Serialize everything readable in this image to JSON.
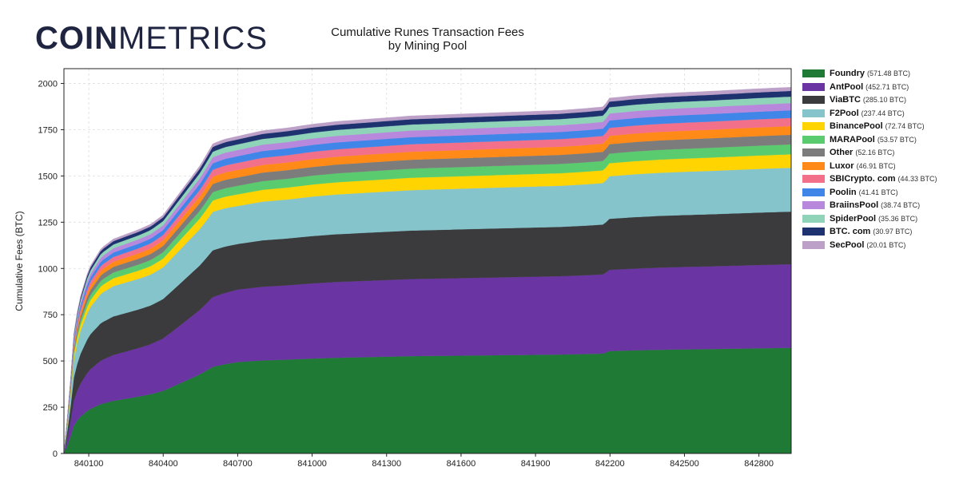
{
  "brand": {
    "logo_bold": "COIN",
    "logo_light": "METRICS"
  },
  "chart_data": {
    "type": "area",
    "stacked": true,
    "title": "Cumulative Runes Transaction Fees",
    "subtitle": "by Mining Pool",
    "xlabel": "",
    "ylabel": "Cumulative Fees (BTC)",
    "xlim": [
      840000,
      842930
    ],
    "ylim": [
      0,
      2080
    ],
    "x_ticks": [
      840100,
      840400,
      840700,
      841000,
      841300,
      841600,
      841900,
      842200,
      842500,
      842800
    ],
    "y_ticks": [
      0,
      250,
      500,
      750,
      1000,
      1250,
      1500,
      1750,
      2000
    ],
    "grid": true,
    "legend_position": "right",
    "total_checkpoints": {
      "x": [
        840000,
        840020,
        840040,
        840060,
        840100,
        840150,
        840200,
        840250,
        840300,
        840350,
        840400,
        840450,
        840500,
        840550,
        840600,
        840650,
        840700,
        840800,
        840900,
        841000,
        841100,
        841200,
        841300,
        841400,
        841500,
        841600,
        841700,
        841800,
        841900,
        842000,
        842100,
        842180,
        842190,
        842300,
        842400,
        842500,
        842600,
        842700,
        842800,
        842930
      ],
      "total": [
        0,
        280,
        650,
        820,
        1000,
        1110,
        1160,
        1185,
        1210,
        1240,
        1290,
        1380,
        1470,
        1560,
        1675,
        1700,
        1715,
        1745,
        1760,
        1780,
        1795,
        1805,
        1815,
        1825,
        1830,
        1835,
        1840,
        1845,
        1850,
        1855,
        1865,
        1875,
        1920,
        1935,
        1945,
        1952,
        1958,
        1965,
        1972,
        1980
      ]
    },
    "series": [
      {
        "name": "Foundry",
        "value_label": "(571.48 BTC)",
        "final": 571.48,
        "color": "#1f7a35"
      },
      {
        "name": "AntPool",
        "value_label": "(452.71 BTC)",
        "final": 452.71,
        "color": "#6a35a2"
      },
      {
        "name": "ViaBTC",
        "value_label": "(285.10 BTC)",
        "final": 285.1,
        "color": "#3b3b3d"
      },
      {
        "name": "F2Pool",
        "value_label": "(237.44 BTC)",
        "final": 237.44,
        "color": "#86c4cc"
      },
      {
        "name": "BinancePool",
        "value_label": "(72.74 BTC)",
        "final": 72.74,
        "color": "#ffd400"
      },
      {
        "name": "MARAPool",
        "value_label": "(53.57 BTC)",
        "final": 53.57,
        "color": "#5acb6e"
      },
      {
        "name": "Other",
        "value_label": "(52.16 BTC)",
        "final": 52.16,
        "color": "#7c7c7c"
      },
      {
        "name": "Luxor",
        "value_label": "(46.91 BTC)",
        "final": 46.91,
        "color": "#ff8a17"
      },
      {
        "name": "SBICrypto. com",
        "value_label": "(44.33 BTC)",
        "final": 44.33,
        "color": "#f2708a"
      },
      {
        "name": "Poolin",
        "value_label": "(41.41 BTC)",
        "final": 41.41,
        "color": "#3f86e8"
      },
      {
        "name": "BraiinsPool",
        "value_label": "(38.74 BTC)",
        "final": 38.74,
        "color": "#b888dc"
      },
      {
        "name": "SpiderPool",
        "value_label": "(35.36 BTC)",
        "final": 35.36,
        "color": "#8fd3b8"
      },
      {
        "name": "BTC. com",
        "value_label": "(30.97 BTC)",
        "final": 30.97,
        "color": "#1e3270"
      },
      {
        "name": "SecPool",
        "value_label": "(20.01 BTC)",
        "final": 20.01,
        "color": "#bca0c8"
      }
    ]
  }
}
